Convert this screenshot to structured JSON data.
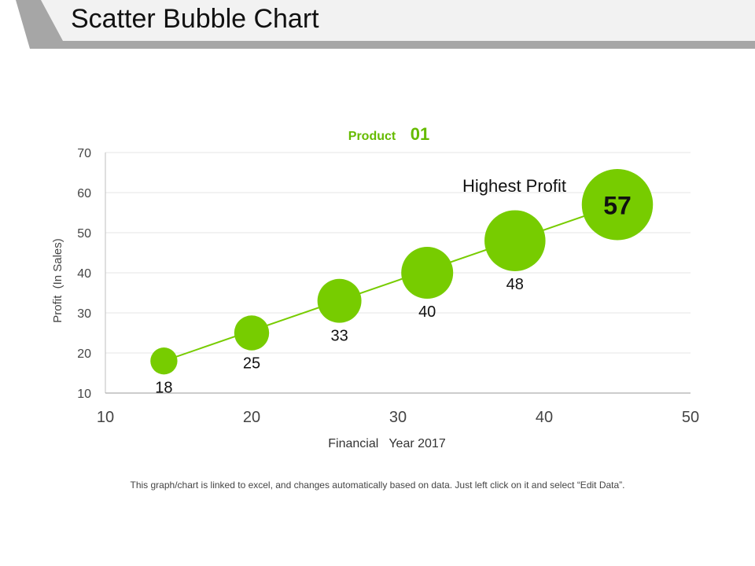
{
  "slide": {
    "title": "Scatter Bubble Chart",
    "footnote": "This graph/chart is linked to excel, and changes automatically based on data. Just left click on it and select “Edit Data”."
  },
  "colors": {
    "bubble": "#77cc00",
    "title_green": "#66bb00",
    "header_bar": "#a6a6a6",
    "header_band": "#f2f2f2"
  },
  "chart_data": {
    "type": "scatter",
    "title_word": "Product",
    "title_number": "01",
    "xlabel": "Financial   Year 2017",
    "ylabel": "Profit  (In Sales)",
    "xlim": [
      10,
      50
    ],
    "ylim": [
      10,
      70
    ],
    "x_ticks": [
      10,
      20,
      30,
      40,
      50
    ],
    "y_ticks": [
      10,
      20,
      30,
      40,
      50,
      60,
      70
    ],
    "grid": "horizontal",
    "points": [
      {
        "x": 14,
        "y": 18,
        "size": 18,
        "label": "18"
      },
      {
        "x": 20,
        "y": 25,
        "size": 25,
        "label": "25"
      },
      {
        "x": 26,
        "y": 33,
        "size": 33,
        "label": "33"
      },
      {
        "x": 32,
        "y": 40,
        "size": 40,
        "label": "40"
      },
      {
        "x": 38,
        "y": 48,
        "size": 48,
        "label": "48"
      },
      {
        "x": 45,
        "y": 57,
        "size": 57,
        "label": "57"
      }
    ],
    "trendline": true,
    "annotation": "Highest Profit"
  }
}
